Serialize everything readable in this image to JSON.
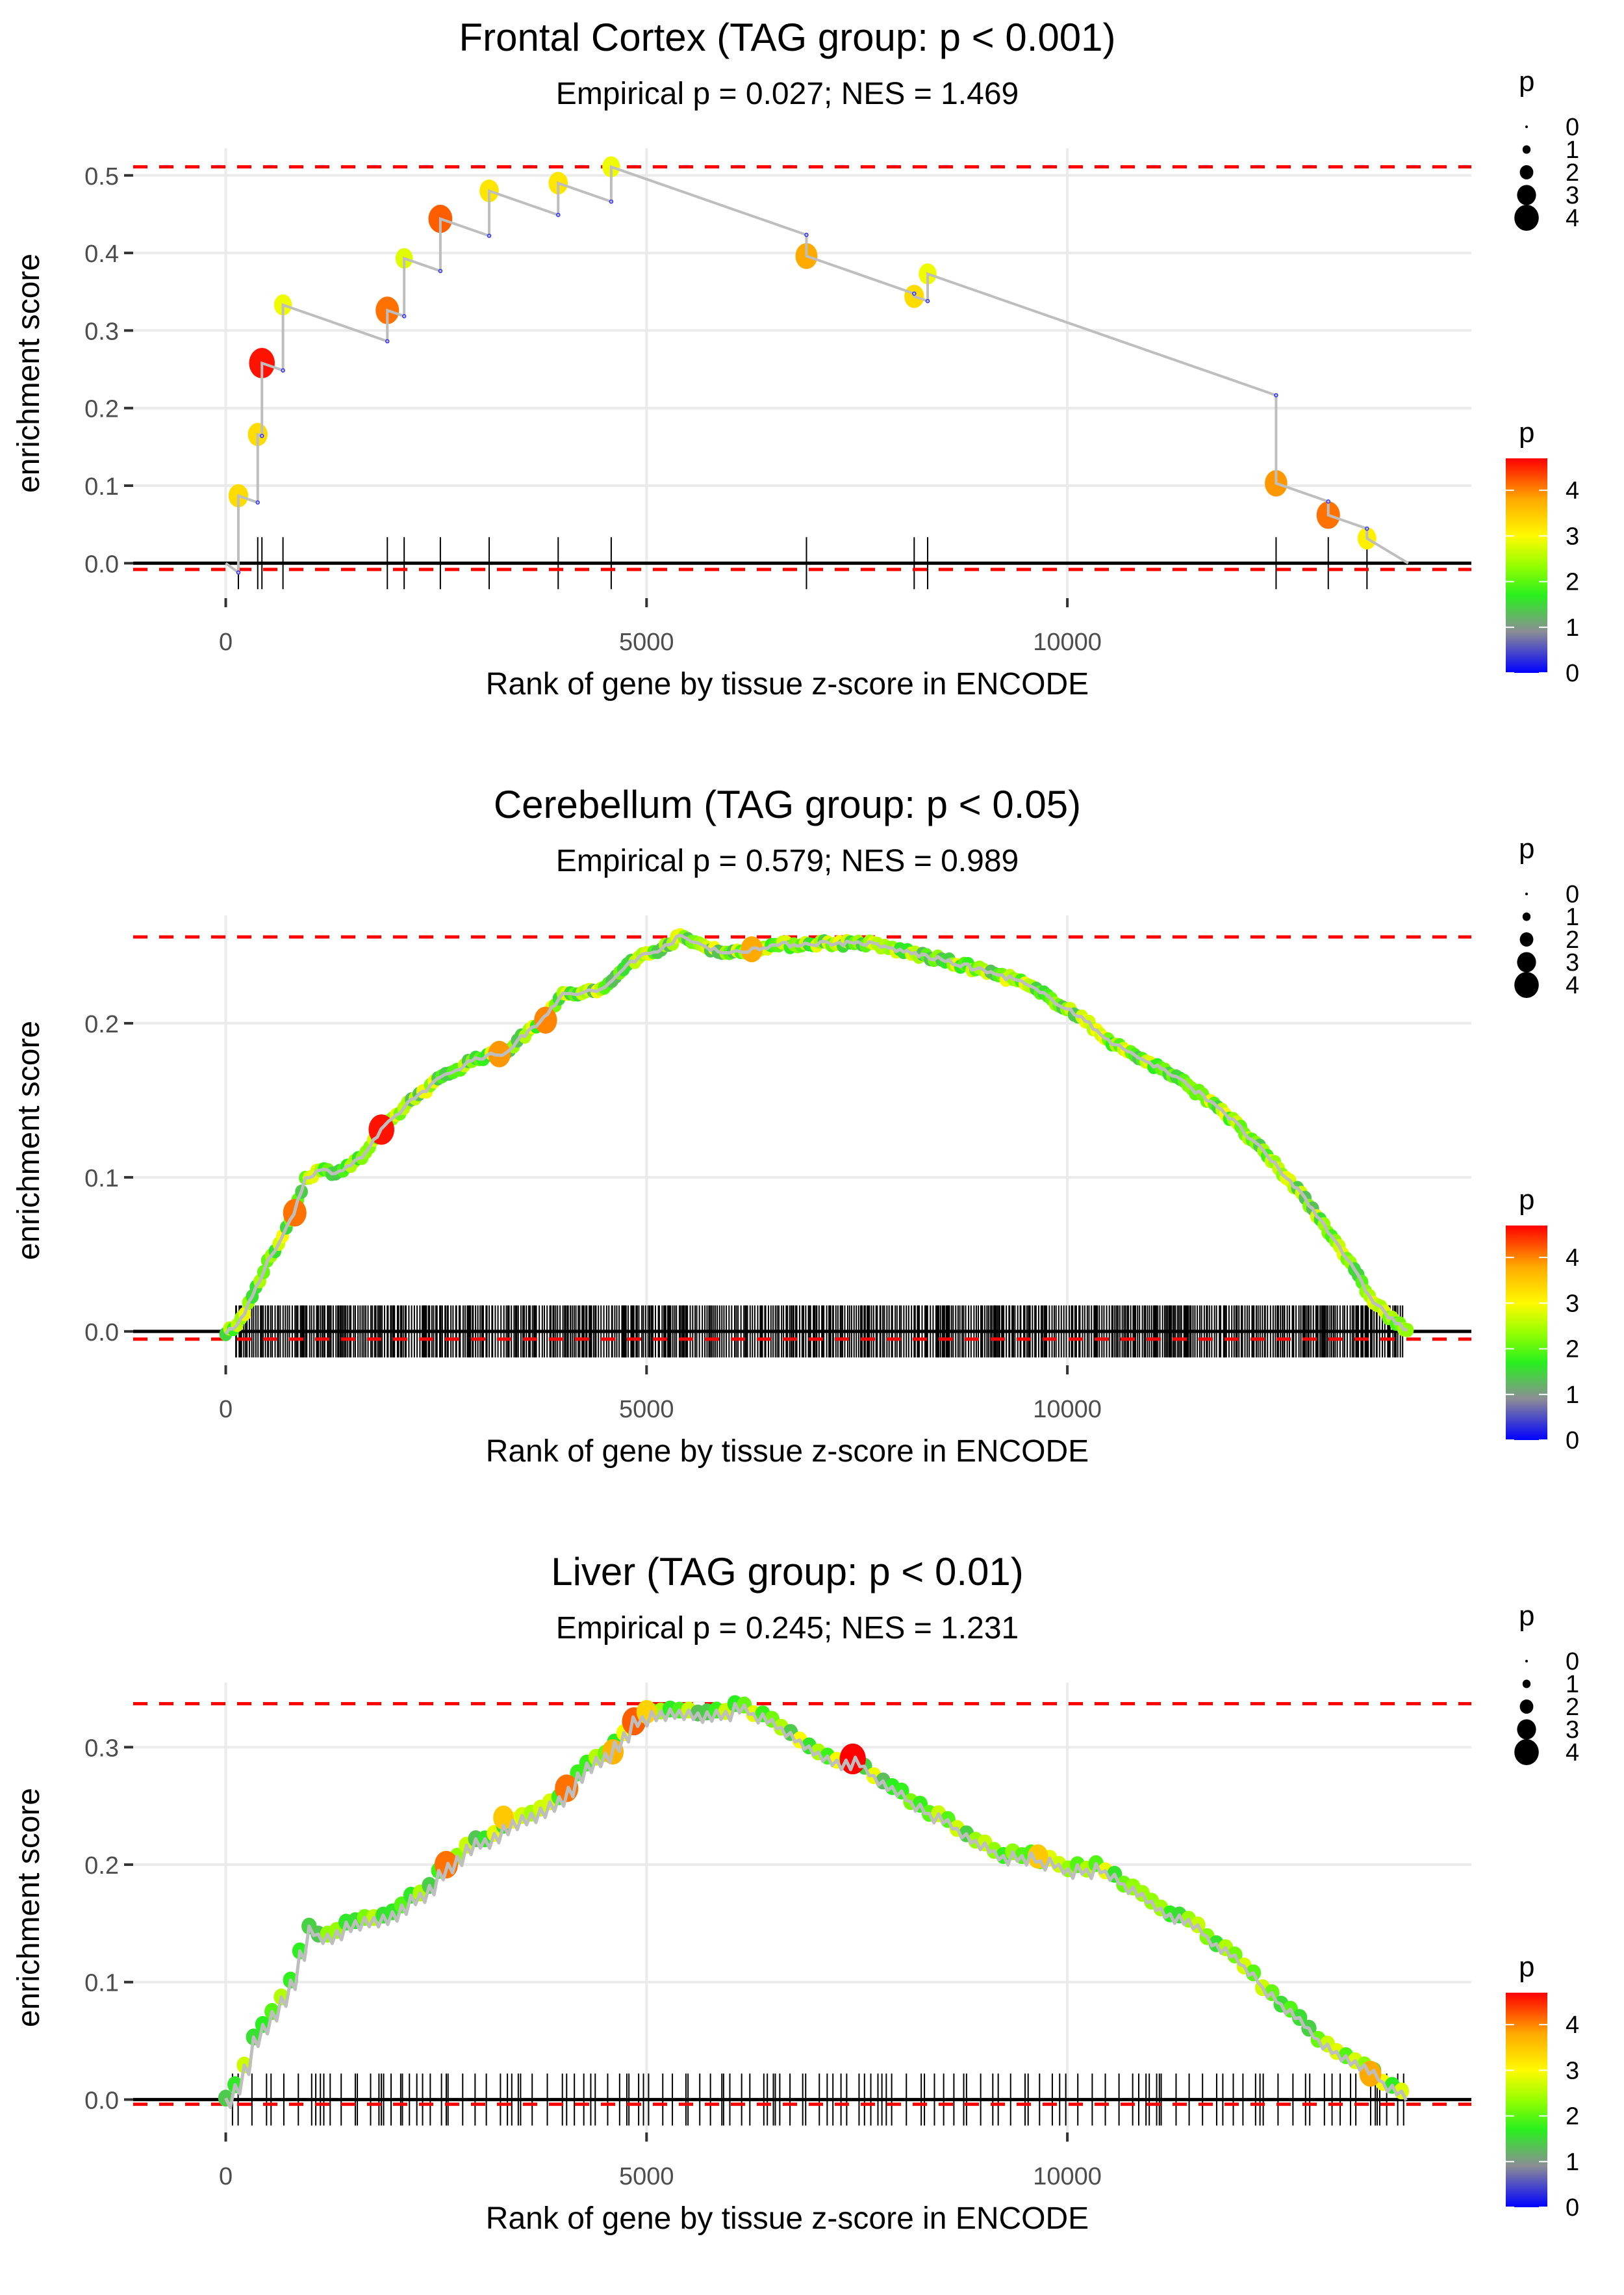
{
  "chart_data": [
    {
      "type": "line",
      "title": "Frontal Cortex (TAG group: p < 0.001)",
      "subtitle": "Empirical p = 0.027; NES = 1.469",
      "xlabel": "Rank of gene by tissue z-score in ENCODE",
      "ylabel": "enrichment score",
      "xlim": [
        -1100,
        14800
      ],
      "ylim": [
        -0.045,
        0.535
      ],
      "xticks": [
        0,
        5000,
        10000
      ],
      "xtick_labels": [
        "0",
        "5000",
        "10000"
      ],
      "yticks": [
        0.0,
        0.1,
        0.2,
        0.3,
        0.4,
        0.5
      ],
      "ytick_labels": [
        "0.0",
        "0.1",
        "0.2",
        "0.3",
        "0.4",
        "0.5"
      ],
      "max_es_line": 0.511,
      "min_es_line": -0.008,
      "grid": true,
      "rug_density": "sparse",
      "hits": [
        {
          "x": 150,
          "y": 0.087,
          "p": 3.3
        },
        {
          "x": 380,
          "y": 0.166,
          "p": 3.3
        },
        {
          "x": 430,
          "y": 0.258,
          "p": 4.6
        },
        {
          "x": 680,
          "y": 0.333,
          "p": 2.9
        },
        {
          "x": 1920,
          "y": 0.326,
          "p": 4.1
        },
        {
          "x": 2120,
          "y": 0.393,
          "p": 2.8
        },
        {
          "x": 2550,
          "y": 0.444,
          "p": 4.2
        },
        {
          "x": 3130,
          "y": 0.48,
          "p": 3.2
        },
        {
          "x": 3950,
          "y": 0.49,
          "p": 3.2
        },
        {
          "x": 4580,
          "y": 0.511,
          "p": 2.9
        },
        {
          "x": 6900,
          "y": 0.396,
          "p": 3.8
        },
        {
          "x": 8180,
          "y": 0.344,
          "p": 3.3
        },
        {
          "x": 8340,
          "y": 0.373,
          "p": 2.9
        },
        {
          "x": 12480,
          "y": 0.103,
          "p": 3.9
        },
        {
          "x": 13100,
          "y": 0.062,
          "p": 4.1
        },
        {
          "x": 13560,
          "y": 0.032,
          "p": 3.1
        }
      ],
      "end_x": 14050,
      "legend_size": {
        "title": "p",
        "labels": [
          "0",
          "1",
          "2",
          "3",
          "4"
        ]
      },
      "legend_color": {
        "title": "p",
        "labels": [
          "4",
          "3",
          "2",
          "1",
          "0"
        ],
        "range": [
          0,
          4.7
        ]
      }
    },
    {
      "type": "line",
      "title": "Cerebellum (TAG group: p < 0.05)",
      "subtitle": "Empirical p = 0.579; NES = 0.989",
      "xlabel": "Rank of gene by tissue z-score in ENCODE",
      "ylabel": "enrichment score",
      "xlim": [
        -1100,
        14800
      ],
      "ylim": [
        -0.022,
        0.27
      ],
      "xticks": [
        0,
        5000,
        10000
      ],
      "xtick_labels": [
        "0",
        "5000",
        "10000"
      ],
      "yticks": [
        0.0,
        0.1,
        0.2
      ],
      "ytick_labels": [
        "0.0",
        "0.1",
        "0.2"
      ],
      "max_es_line": 0.256,
      "min_es_line": -0.005,
      "grid": true,
      "rug_density": "dense",
      "curve": [
        {
          "x": 0,
          "y": 0.0
        },
        {
          "x": 150,
          "y": 0.005
        },
        {
          "x": 300,
          "y": 0.02
        },
        {
          "x": 500,
          "y": 0.045
        },
        {
          "x": 700,
          "y": 0.065
        },
        {
          "x": 830,
          "y": 0.08
        },
        {
          "x": 950,
          "y": 0.1
        },
        {
          "x": 1100,
          "y": 0.104
        },
        {
          "x": 1350,
          "y": 0.104
        },
        {
          "x": 1600,
          "y": 0.112
        },
        {
          "x": 1850,
          "y": 0.13
        },
        {
          "x": 2200,
          "y": 0.15
        },
        {
          "x": 2600,
          "y": 0.166
        },
        {
          "x": 3000,
          "y": 0.178
        },
        {
          "x": 3300,
          "y": 0.18
        },
        {
          "x": 3700,
          "y": 0.2
        },
        {
          "x": 4000,
          "y": 0.218
        },
        {
          "x": 4500,
          "y": 0.222
        },
        {
          "x": 4800,
          "y": 0.24
        },
        {
          "x": 5100,
          "y": 0.247
        },
        {
          "x": 5400,
          "y": 0.256
        },
        {
          "x": 5700,
          "y": 0.25
        },
        {
          "x": 6000,
          "y": 0.245
        },
        {
          "x": 6400,
          "y": 0.25
        },
        {
          "x": 7000,
          "y": 0.252
        },
        {
          "x": 7600,
          "y": 0.252
        },
        {
          "x": 8200,
          "y": 0.245
        },
        {
          "x": 8800,
          "y": 0.237
        },
        {
          "x": 9400,
          "y": 0.228
        },
        {
          "x": 10000,
          "y": 0.21
        },
        {
          "x": 10600,
          "y": 0.185
        },
        {
          "x": 11200,
          "y": 0.168
        },
        {
          "x": 11800,
          "y": 0.146
        },
        {
          "x": 12300,
          "y": 0.118
        },
        {
          "x": 12800,
          "y": 0.088
        },
        {
          "x": 13200,
          "y": 0.058
        },
        {
          "x": 13600,
          "y": 0.022
        },
        {
          "x": 13850,
          "y": 0.008
        },
        {
          "x": 14050,
          "y": 0.0
        }
      ],
      "highlight_hits": [
        {
          "x": 820,
          "y": 0.077,
          "p": 4.1
        },
        {
          "x": 1850,
          "y": 0.131,
          "p": 4.6
        },
        {
          "x": 3250,
          "y": 0.18,
          "p": 3.9
        },
        {
          "x": 3800,
          "y": 0.202,
          "p": 4.0
        },
        {
          "x": 6250,
          "y": 0.248,
          "p": 3.8
        }
      ],
      "legend_size": {
        "title": "p",
        "labels": [
          "0",
          "1",
          "2",
          "3",
          "4"
        ]
      },
      "legend_color": {
        "title": "p",
        "labels": [
          "4",
          "3",
          "2",
          "1",
          "0"
        ],
        "range": [
          0,
          4.7
        ]
      }
    },
    {
      "type": "line",
      "title": "Liver (TAG group: p < 0.01)",
      "subtitle": "Empirical p = 0.245; NES = 1.231",
      "xlabel": "Rank of gene by tissue z-score in ENCODE",
      "ylabel": "enrichment score",
      "xlim": [
        -1100,
        14800
      ],
      "ylim": [
        -0.028,
        0.355
      ],
      "xticks": [
        0,
        5000,
        10000
      ],
      "xtick_labels": [
        "0",
        "5000",
        "10000"
      ],
      "yticks": [
        0.0,
        0.1,
        0.2,
        0.3
      ],
      "ytick_labels": [
        "0.0",
        "0.1",
        "0.2",
        "0.3"
      ],
      "max_es_line": 0.337,
      "min_es_line": -0.004,
      "grid": true,
      "rug_density": "medium",
      "curve": [
        {
          "x": 0,
          "y": 0.0
        },
        {
          "x": 150,
          "y": 0.015
        },
        {
          "x": 300,
          "y": 0.05
        },
        {
          "x": 450,
          "y": 0.068
        },
        {
          "x": 650,
          "y": 0.085
        },
        {
          "x": 800,
          "y": 0.105
        },
        {
          "x": 950,
          "y": 0.148
        },
        {
          "x": 1200,
          "y": 0.14
        },
        {
          "x": 1500,
          "y": 0.155
        },
        {
          "x": 1800,
          "y": 0.152
        },
        {
          "x": 2100,
          "y": 0.168
        },
        {
          "x": 2400,
          "y": 0.18
        },
        {
          "x": 2600,
          "y": 0.2
        },
        {
          "x": 2900,
          "y": 0.218
        },
        {
          "x": 3300,
          "y": 0.232
        },
        {
          "x": 3700,
          "y": 0.245
        },
        {
          "x": 4050,
          "y": 0.265
        },
        {
          "x": 4300,
          "y": 0.29
        },
        {
          "x": 4600,
          "y": 0.3
        },
        {
          "x": 4800,
          "y": 0.322
        },
        {
          "x": 5100,
          "y": 0.332
        },
        {
          "x": 5400,
          "y": 0.333
        },
        {
          "x": 5700,
          "y": 0.328
        },
        {
          "x": 6100,
          "y": 0.337
        },
        {
          "x": 6500,
          "y": 0.322
        },
        {
          "x": 7100,
          "y": 0.29
        },
        {
          "x": 7450,
          "y": 0.29
        },
        {
          "x": 7950,
          "y": 0.265
        },
        {
          "x": 8500,
          "y": 0.24
        },
        {
          "x": 9200,
          "y": 0.21
        },
        {
          "x": 9600,
          "y": 0.207
        },
        {
          "x": 10000,
          "y": 0.198
        },
        {
          "x": 10400,
          "y": 0.198
        },
        {
          "x": 11000,
          "y": 0.168
        },
        {
          "x": 11500,
          "y": 0.15
        },
        {
          "x": 12000,
          "y": 0.12
        },
        {
          "x": 12500,
          "y": 0.085
        },
        {
          "x": 13100,
          "y": 0.045
        },
        {
          "x": 13700,
          "y": 0.02
        },
        {
          "x": 14050,
          "y": 0.0
        }
      ],
      "highlight_hits": [
        {
          "x": 2620,
          "y": 0.2,
          "p": 4.1
        },
        {
          "x": 3300,
          "y": 0.24,
          "p": 3.5
        },
        {
          "x": 4050,
          "y": 0.265,
          "p": 4.1
        },
        {
          "x": 4600,
          "y": 0.296,
          "p": 3.7
        },
        {
          "x": 4850,
          "y": 0.322,
          "p": 4.2
        },
        {
          "x": 5000,
          "y": 0.33,
          "p": 3.4
        },
        {
          "x": 7450,
          "y": 0.29,
          "p": 4.7
        },
        {
          "x": 9650,
          "y": 0.207,
          "p": 3.5
        },
        {
          "x": 13600,
          "y": 0.022,
          "p": 3.8
        }
      ],
      "legend_size": {
        "title": "p",
        "labels": [
          "0",
          "1",
          "2",
          "3",
          "4"
        ]
      },
      "legend_color": {
        "title": "p",
        "labels": [
          "4",
          "3",
          "2",
          "1",
          "0"
        ],
        "range": [
          0,
          4.7
        ]
      }
    }
  ]
}
